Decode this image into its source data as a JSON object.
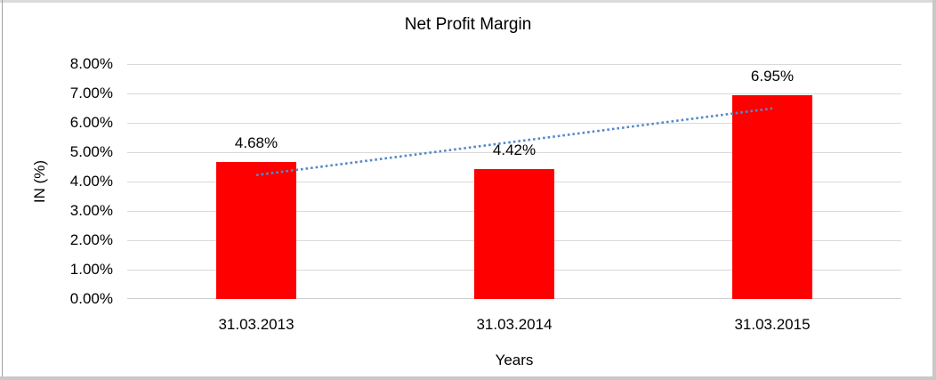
{
  "chart_data": {
    "type": "bar",
    "title": "Net Profit Margin",
    "xlabel": "Years",
    "ylabel": "IN (%)",
    "categories": [
      "31.03.2013",
      "31.03.2014",
      "31.03.2015"
    ],
    "values": [
      4.68,
      4.42,
      6.95
    ],
    "data_labels": [
      "4.68%",
      "4.42%",
      "6.95%"
    ],
    "ylim": [
      0,
      8
    ],
    "ytick_step": 1,
    "ytick_labels": [
      "0.00%",
      "1.00%",
      "2.00%",
      "3.00%",
      "4.00%",
      "5.00%",
      "6.00%",
      "7.00%",
      "8.00%"
    ],
    "grid": true,
    "legend": "none",
    "bar_color": "#FF0000",
    "gridline_color": "#D9D9D9",
    "axis_line_color": "#CFCFCF",
    "text_color": "#000000",
    "trendline": {
      "type": "linear",
      "style": "dotted",
      "color": "#5589C9",
      "spans_categories": [
        "31.03.2013",
        "31.03.2015"
      ],
      "y_start": 4.22,
      "y_end": 6.49
    }
  }
}
